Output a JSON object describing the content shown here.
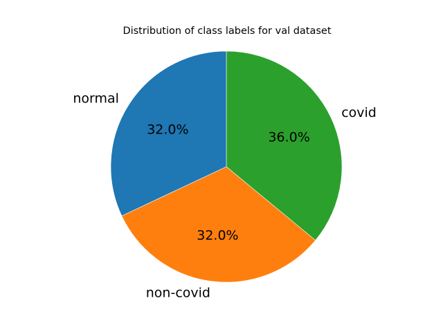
{
  "chart_data": {
    "type": "pie",
    "title": "Distribution of class labels for val dataset",
    "labels": [
      "covid",
      "non-covid",
      "normal"
    ],
    "values": [
      36.0,
      32.0,
      32.0
    ],
    "value_labels": [
      "36.0%",
      "32.0%",
      "32.0%"
    ],
    "colors": [
      "#2ca02c",
      "#ff7f0e",
      "#1f77b4"
    ],
    "start_angle_deg": 90,
    "direction": "clockwise"
  }
}
